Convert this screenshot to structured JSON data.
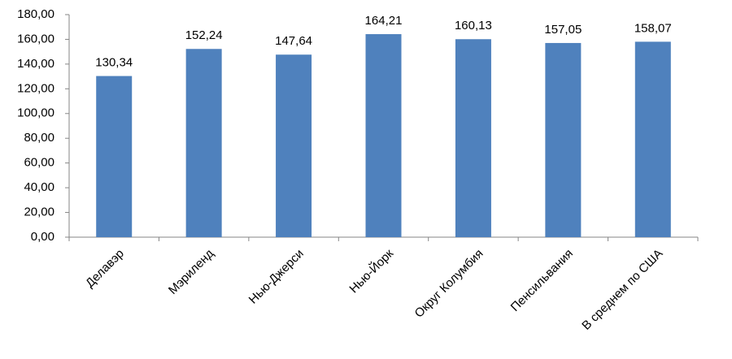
{
  "chart_data": {
    "type": "bar",
    "categories": [
      "Делавэр",
      "Мэриленд",
      "Нью-Джерси",
      "Нью-Йорк",
      "Округ Колумбия",
      "Пенсильвания",
      "В среднем по США"
    ],
    "values": [
      130.34,
      152.24,
      147.64,
      164.21,
      160.13,
      157.05,
      158.07
    ],
    "value_labels": [
      "130,34",
      "152,24",
      "147,64",
      "164,21",
      "160,13",
      "157,05",
      "158,07"
    ],
    "color": "#4f81bd",
    "ylim": [
      0,
      180
    ],
    "yticks": [
      {
        "value": 0,
        "label": "0,00"
      },
      {
        "value": 20,
        "label": "20,00"
      },
      {
        "value": 40,
        "label": "40,00"
      },
      {
        "value": 60,
        "label": "60,00"
      },
      {
        "value": 80,
        "label": "80,00"
      },
      {
        "value": 100,
        "label": "100,00"
      },
      {
        "value": 120,
        "label": "120,00"
      },
      {
        "value": 140,
        "label": "140,00"
      },
      {
        "value": 160,
        "label": "160,00"
      },
      {
        "value": 180,
        "label": "180,00"
      }
    ],
    "grid": false
  }
}
